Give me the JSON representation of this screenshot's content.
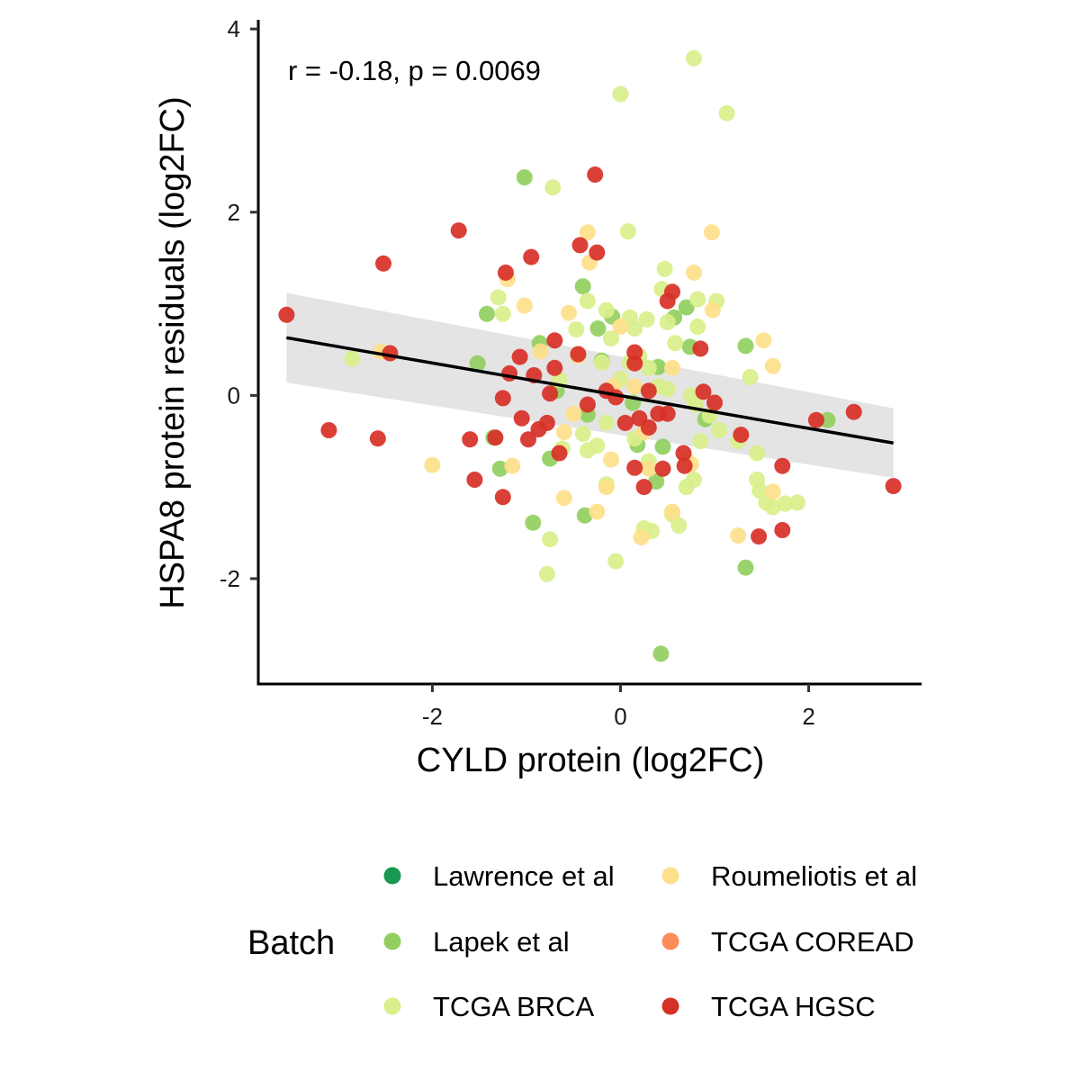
{
  "chart_data": {
    "type": "scatter",
    "title": "",
    "xlabel": "CYLD protein (log2FC)",
    "ylabel": "HSPA8 protein residuals (log2FC)",
    "xlim": [
      -3.85,
      3.2
    ],
    "ylim": [
      -3.15,
      4.1
    ],
    "x_ticks": [
      -2,
      0,
      2
    ],
    "x_tick_labels": [
      "-2",
      "0",
      "2"
    ],
    "y_ticks": [
      -2,
      0,
      2,
      4
    ],
    "y_tick_labels": [
      "-2",
      "0",
      "2",
      "4"
    ],
    "grid": false,
    "annotation": "r = -0.18, p = 0.0069",
    "regression": {
      "x": [
        -3.55,
        2.9
      ],
      "y": [
        0.63,
        -0.52
      ],
      "ci_lower": [
        0.14,
        -0.9
      ],
      "ci_upper": [
        1.12,
        -0.14
      ],
      "color": "#000000",
      "band_color": "#d9d9d9"
    },
    "legend": {
      "title": "Batch",
      "position": "bottom",
      "entries": [
        {
          "name": "Lawrence et al",
          "color": "#1a9850"
        },
        {
          "name": "Lapek et al",
          "color": "#91cf60"
        },
        {
          "name": "TCGA BRCA",
          "color": "#d9ef8b"
        },
        {
          "name": "Roumeliotis et al",
          "color": "#fee08b"
        },
        {
          "name": "TCGA COREAD",
          "color": "#fc8d59"
        },
        {
          "name": "TCGA HGSC",
          "color": "#d73027"
        }
      ]
    },
    "series": [
      {
        "name": "Lawrence et al",
        "color": "#1a9850",
        "points": []
      },
      {
        "name": "Lapek et al",
        "color": "#91cf60",
        "points": [
          [
            -1.02,
            2.38
          ],
          [
            -0.86,
            0.57
          ],
          [
            -1.42,
            0.89
          ],
          [
            -0.4,
            1.19
          ],
          [
            -0.24,
            0.73
          ],
          [
            -0.09,
            0.86
          ],
          [
            0.7,
            0.96
          ],
          [
            0.57,
            0.85
          ],
          [
            0.74,
            0.53
          ],
          [
            1.33,
            0.54
          ],
          [
            -1.52,
            0.35
          ],
          [
            -0.2,
            0.38
          ],
          [
            0.4,
            0.31
          ],
          [
            2.2,
            -0.27
          ],
          [
            0.13,
            -0.08
          ],
          [
            -0.35,
            -0.21
          ],
          [
            -1.35,
            -0.46
          ],
          [
            0.45,
            -0.56
          ],
          [
            -0.75,
            -0.69
          ],
          [
            -1.28,
            -0.8
          ],
          [
            0.38,
            -0.94
          ],
          [
            -0.38,
            -1.31
          ],
          [
            -0.93,
            -1.39
          ],
          [
            1.33,
            -1.88
          ],
          [
            0.43,
            -2.82
          ],
          [
            0.18,
            -0.54
          ],
          [
            -0.68,
            0.05
          ],
          [
            0.9,
            -0.26
          ]
        ]
      },
      {
        "name": "TCGA BRCA",
        "color": "#d9ef8b",
        "points": [
          [
            0.78,
            3.68
          ],
          [
            0.0,
            3.29
          ],
          [
            1.13,
            3.08
          ],
          [
            -0.72,
            2.27
          ],
          [
            0.08,
            1.79
          ],
          [
            0.47,
            1.38
          ],
          [
            -1.3,
            1.07
          ],
          [
            -1.25,
            0.89
          ],
          [
            -0.35,
            1.03
          ],
          [
            -0.15,
            0.93
          ],
          [
            0.44,
            1.16
          ],
          [
            0.82,
            1.05
          ],
          [
            1.02,
            1.03
          ],
          [
            0.1,
            0.85
          ],
          [
            0.15,
            0.73
          ],
          [
            0.28,
            0.83
          ],
          [
            0.5,
            0.8
          ],
          [
            0.82,
            0.75
          ],
          [
            0.58,
            0.57
          ],
          [
            -0.47,
            0.72
          ],
          [
            0.2,
            0.43
          ],
          [
            0.1,
            0.36
          ],
          [
            0.3,
            0.3
          ],
          [
            -0.2,
            0.36
          ],
          [
            -2.85,
            0.4
          ],
          [
            1.38,
            0.2
          ],
          [
            -0.65,
            0.17
          ],
          [
            0.0,
            0.18
          ],
          [
            0.5,
            0.07
          ],
          [
            0.75,
            -0.0
          ],
          [
            0.8,
            -0.1
          ],
          [
            0.95,
            -0.22
          ],
          [
            1.05,
            -0.38
          ],
          [
            1.25,
            -0.5
          ],
          [
            -0.15,
            -0.3
          ],
          [
            -0.4,
            -0.42
          ],
          [
            0.15,
            -0.47
          ],
          [
            0.85,
            -0.5
          ],
          [
            1.45,
            -0.63
          ],
          [
            -0.62,
            -0.58
          ],
          [
            -0.35,
            -0.6
          ],
          [
            0.3,
            -0.72
          ],
          [
            0.7,
            -0.7
          ],
          [
            -0.15,
            -0.97
          ],
          [
            0.7,
            -1.0
          ],
          [
            0.78,
            -0.92
          ],
          [
            1.45,
            -0.92
          ],
          [
            1.48,
            -1.04
          ],
          [
            1.55,
            -1.17
          ],
          [
            1.62,
            -1.22
          ],
          [
            1.75,
            -1.18
          ],
          [
            1.88,
            -1.17
          ],
          [
            0.55,
            -1.3
          ],
          [
            0.62,
            -1.42
          ],
          [
            0.25,
            -1.45
          ],
          [
            0.33,
            -1.48
          ],
          [
            -0.75,
            -1.57
          ],
          [
            -0.05,
            -1.81
          ],
          [
            -0.78,
            -1.95
          ],
          [
            -0.25,
            -0.55
          ],
          [
            0.4,
            0.1
          ],
          [
            -0.1,
            0.62
          ]
        ]
      },
      {
        "name": "Roumeliotis et al",
        "color": "#fee08b",
        "points": [
          [
            -0.35,
            1.78
          ],
          [
            0.97,
            1.78
          ],
          [
            -0.33,
            1.45
          ],
          [
            0.78,
            1.34
          ],
          [
            -1.2,
            1.27
          ],
          [
            -1.02,
            0.98
          ],
          [
            -0.55,
            0.9
          ],
          [
            0.98,
            0.93
          ],
          [
            -0.85,
            0.48
          ],
          [
            -2.55,
            0.48
          ],
          [
            -0.45,
            0.43
          ],
          [
            1.52,
            0.6
          ],
          [
            1.62,
            0.32
          ],
          [
            -0.08,
            0.1
          ],
          [
            0.15,
            0.1
          ],
          [
            0.55,
            0.3
          ],
          [
            -0.5,
            -0.2
          ],
          [
            0.25,
            -0.4
          ],
          [
            -0.6,
            -0.4
          ],
          [
            -0.1,
            -0.7
          ],
          [
            -2.0,
            -0.76
          ],
          [
            -1.15,
            -0.77
          ],
          [
            0.3,
            -0.8
          ],
          [
            0.75,
            -0.75
          ],
          [
            -0.15,
            -1.0
          ],
          [
            -0.6,
            -1.12
          ],
          [
            1.62,
            -1.05
          ],
          [
            -0.25,
            -1.27
          ],
          [
            0.55,
            -1.27
          ],
          [
            1.25,
            -1.53
          ],
          [
            0.22,
            -1.55
          ],
          [
            0.0,
            0.75
          ]
        ]
      },
      {
        "name": "TCGA COREAD",
        "color": "#fc8d59",
        "points": []
      },
      {
        "name": "TCGA HGSC",
        "color": "#d73027",
        "points": [
          [
            -0.27,
            2.41
          ],
          [
            -1.72,
            1.8
          ],
          [
            -0.43,
            1.64
          ],
          [
            -0.25,
            1.56
          ],
          [
            -0.95,
            1.51
          ],
          [
            -2.52,
            1.44
          ],
          [
            -1.22,
            1.34
          ],
          [
            0.55,
            1.13
          ],
          [
            0.5,
            1.03
          ],
          [
            -3.55,
            0.88
          ],
          [
            -0.7,
            0.6
          ],
          [
            -1.07,
            0.42
          ],
          [
            0.15,
            0.47
          ],
          [
            0.85,
            0.51
          ],
          [
            -2.45,
            0.46
          ],
          [
            -0.45,
            0.45
          ],
          [
            -1.18,
            0.24
          ],
          [
            -0.92,
            0.22
          ],
          [
            -0.7,
            0.3
          ],
          [
            -0.15,
            0.05
          ],
          [
            0.3,
            0.05
          ],
          [
            0.88,
            0.04
          ],
          [
            -1.25,
            -0.03
          ],
          [
            -0.75,
            0.02
          ],
          [
            -0.05,
            -0.02
          ],
          [
            1.0,
            -0.08
          ],
          [
            0.4,
            -0.2
          ],
          [
            0.2,
            -0.25
          ],
          [
            0.05,
            -0.3
          ],
          [
            0.3,
            -0.35
          ],
          [
            -1.05,
            -0.25
          ],
          [
            -0.78,
            -0.3
          ],
          [
            -0.35,
            -0.1
          ],
          [
            2.48,
            -0.18
          ],
          [
            2.08,
            -0.27
          ],
          [
            -3.1,
            -0.38
          ],
          [
            -2.58,
            -0.47
          ],
          [
            -1.6,
            -0.48
          ],
          [
            -1.33,
            -0.46
          ],
          [
            -0.98,
            -0.48
          ],
          [
            -0.65,
            -0.63
          ],
          [
            1.28,
            -0.43
          ],
          [
            0.67,
            -0.63
          ],
          [
            0.45,
            -0.8
          ],
          [
            0.15,
            -0.79
          ],
          [
            0.68,
            -0.77
          ],
          [
            -1.55,
            -0.92
          ],
          [
            0.25,
            -1.0
          ],
          [
            -1.25,
            -1.11
          ],
          [
            1.72,
            -0.77
          ],
          [
            1.47,
            -1.54
          ],
          [
            1.72,
            -1.47
          ],
          [
            2.9,
            -0.99
          ],
          [
            -0.87,
            -0.37
          ],
          [
            0.5,
            -0.2
          ],
          [
            0.15,
            0.35
          ]
        ]
      }
    ]
  }
}
